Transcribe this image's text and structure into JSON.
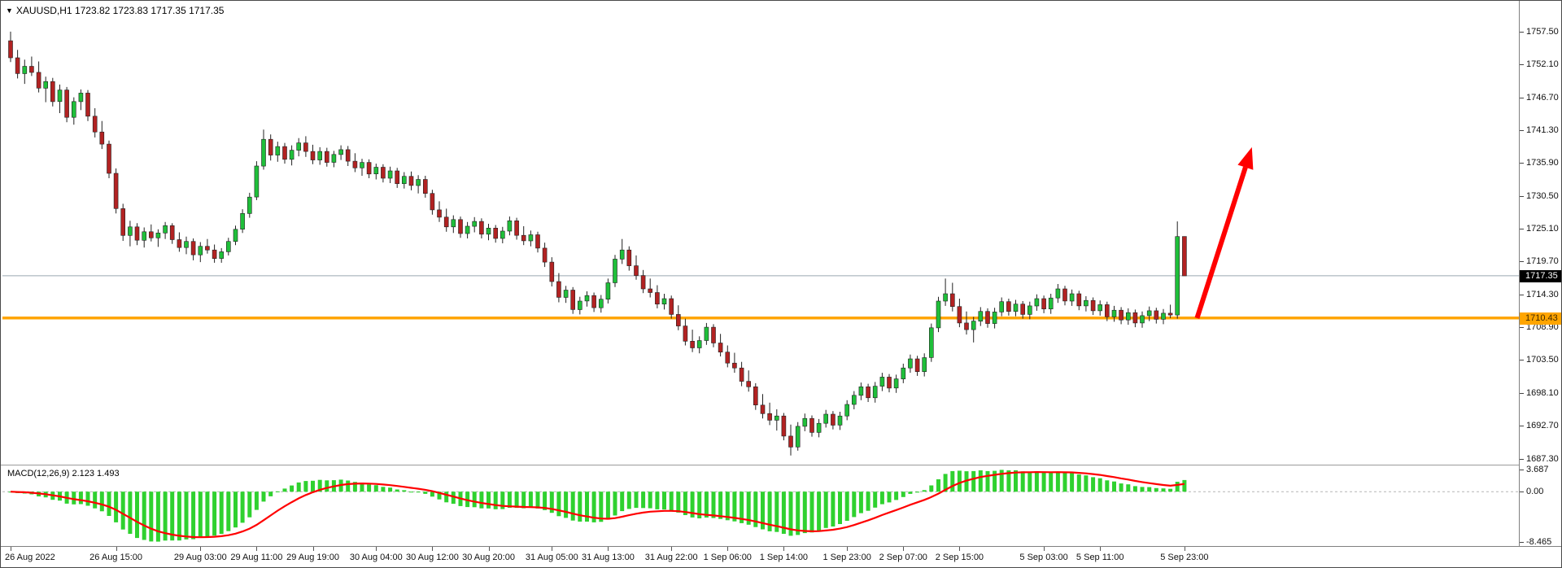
{
  "header": {
    "icon": "▼",
    "symbol_line": "XAUUSD,H1 1723.82 1723.83 1717.35 1717.35"
  },
  "colors": {
    "up": "#1fbf3a",
    "down": "#b22222",
    "wick": "#222222",
    "price_line": "#9aa7b0",
    "macd_hist": "#2fd12f",
    "macd_signal": "#ff0000",
    "zero_line": "#b5b5b5",
    "axis_text": "#111111",
    "background": "#ffffff"
  },
  "chart_data": [
    {
      "type": "candlestick",
      "title": "XAUUSD,H1",
      "timeframe": "H1",
      "ylim": [
        1686.3,
        1762.3
      ],
      "y_ticks": [
        1757.5,
        1752.1,
        1746.7,
        1741.3,
        1735.9,
        1730.5,
        1725.1,
        1719.7,
        1714.3,
        1708.9,
        1703.5,
        1698.1,
        1692.7,
        1687.3
      ],
      "last_price": 1717.35,
      "last_price_label": "1717.35",
      "hline": {
        "price": 1710.43,
        "label": "1710.43",
        "color": "#ffa500"
      },
      "arrow": {
        "from_bar": 168.8,
        "from_price": 1710.4,
        "to_bar": 176.6,
        "to_price": 1738.5,
        "color": "#ff0000"
      },
      "x_labels": [
        {
          "text": "26 Aug 2022",
          "bar": 0
        },
        {
          "text": "26 Aug 15:00",
          "bar": 15
        },
        {
          "text": "29 Aug 03:00",
          "bar": 27
        },
        {
          "text": "29 Aug 11:00",
          "bar": 35
        },
        {
          "text": "29 Aug 19:00",
          "bar": 43
        },
        {
          "text": "30 Aug 04:00",
          "bar": 52
        },
        {
          "text": "30 Aug 12:00",
          "bar": 60
        },
        {
          "text": "30 Aug 20:00",
          "bar": 68
        },
        {
          "text": "31 Aug 05:00",
          "bar": 77
        },
        {
          "text": "31 Aug 13:00",
          "bar": 85
        },
        {
          "text": "31 Aug 22:00",
          "bar": 94
        },
        {
          "text": "1 Sep 06:00",
          "bar": 102
        },
        {
          "text": "1 Sep 14:00",
          "bar": 110
        },
        {
          "text": "1 Sep 23:00",
          "bar": 119
        },
        {
          "text": "2 Sep 07:00",
          "bar": 127
        },
        {
          "text": "2 Sep 15:00",
          "bar": 135
        },
        {
          "text": "5 Sep 03:00",
          "bar": 147
        },
        {
          "text": "5 Sep 11:00",
          "bar": 155
        },
        {
          "text": "5 Sep 23:00",
          "bar": 167
        }
      ],
      "ohlc": [
        [
          1756.0,
          1757.5,
          1752.5,
          1753.2
        ],
        [
          1753.2,
          1754.5,
          1749.8,
          1750.6
        ],
        [
          1750.6,
          1752.9,
          1748.9,
          1751.8
        ],
        [
          1751.8,
          1753.4,
          1750.2,
          1750.8
        ],
        [
          1750.8,
          1752.6,
          1747.5,
          1748.2
        ],
        [
          1748.2,
          1750.1,
          1745.9,
          1749.3
        ],
        [
          1749.3,
          1749.9,
          1745.2,
          1746.0
        ],
        [
          1746.0,
          1748.8,
          1744.1,
          1747.9
        ],
        [
          1747.9,
          1748.4,
          1742.6,
          1743.4
        ],
        [
          1743.4,
          1746.7,
          1742.2,
          1746.0
        ],
        [
          1746.0,
          1748.0,
          1744.6,
          1747.4
        ],
        [
          1747.4,
          1747.9,
          1742.8,
          1743.6
        ],
        [
          1743.6,
          1744.9,
          1740.1,
          1741.0
        ],
        [
          1741.0,
          1742.8,
          1738.2,
          1739.0
        ],
        [
          1739.0,
          1739.6,
          1733.4,
          1734.2
        ],
        [
          1734.2,
          1735.0,
          1727.6,
          1728.4
        ],
        [
          1728.4,
          1729.2,
          1723.1,
          1724.0
        ],
        [
          1724.0,
          1726.4,
          1722.2,
          1725.4
        ],
        [
          1725.4,
          1726.0,
          1722.4,
          1723.2
        ],
        [
          1723.2,
          1725.3,
          1722.0,
          1724.6
        ],
        [
          1724.6,
          1725.8,
          1723.0,
          1723.6
        ],
        [
          1723.6,
          1725.0,
          1722.1,
          1724.4
        ],
        [
          1724.4,
          1726.2,
          1723.4,
          1725.6
        ],
        [
          1725.6,
          1726.0,
          1722.6,
          1723.3
        ],
        [
          1723.3,
          1724.5,
          1721.3,
          1722.0
        ],
        [
          1722.0,
          1723.8,
          1720.9,
          1723.0
        ],
        [
          1723.0,
          1723.5,
          1719.9,
          1720.8
        ],
        [
          1720.8,
          1722.9,
          1719.6,
          1722.2
        ],
        [
          1722.2,
          1723.4,
          1721.0,
          1721.6
        ],
        [
          1721.6,
          1722.5,
          1719.5,
          1720.2
        ],
        [
          1720.2,
          1721.9,
          1719.5,
          1721.3
        ],
        [
          1721.3,
          1723.6,
          1720.7,
          1723.0
        ],
        [
          1723.0,
          1725.6,
          1722.4,
          1725.0
        ],
        [
          1725.0,
          1728.3,
          1724.4,
          1727.6
        ],
        [
          1727.6,
          1731.0,
          1726.9,
          1730.3
        ],
        [
          1730.3,
          1736.2,
          1729.8,
          1735.4
        ],
        [
          1735.4,
          1741.4,
          1734.8,
          1739.8
        ],
        [
          1739.8,
          1740.6,
          1736.3,
          1737.2
        ],
        [
          1737.2,
          1739.4,
          1736.1,
          1738.6
        ],
        [
          1738.6,
          1739.2,
          1735.8,
          1736.5
        ],
        [
          1736.5,
          1738.8,
          1735.5,
          1738.0
        ],
        [
          1738.0,
          1740.0,
          1737.0,
          1739.2
        ],
        [
          1739.2,
          1740.3,
          1736.9,
          1737.8
        ],
        [
          1737.8,
          1738.9,
          1735.7,
          1736.4
        ],
        [
          1736.4,
          1738.5,
          1735.6,
          1737.8
        ],
        [
          1737.8,
          1738.4,
          1735.3,
          1736.0
        ],
        [
          1736.0,
          1737.9,
          1735.2,
          1737.3
        ],
        [
          1737.3,
          1738.8,
          1736.4,
          1738.1
        ],
        [
          1738.1,
          1738.7,
          1735.4,
          1736.2
        ],
        [
          1736.2,
          1737.5,
          1734.4,
          1735.1
        ],
        [
          1735.1,
          1736.6,
          1733.8,
          1736.0
        ],
        [
          1736.0,
          1736.5,
          1733.4,
          1734.1
        ],
        [
          1734.1,
          1735.8,
          1733.2,
          1735.2
        ],
        [
          1735.2,
          1735.7,
          1732.7,
          1733.4
        ],
        [
          1733.4,
          1735.3,
          1732.6,
          1734.6
        ],
        [
          1734.6,
          1735.1,
          1731.8,
          1732.5
        ],
        [
          1732.5,
          1734.4,
          1731.7,
          1733.7
        ],
        [
          1733.7,
          1734.5,
          1731.4,
          1732.2
        ],
        [
          1732.2,
          1733.9,
          1730.9,
          1733.2
        ],
        [
          1733.2,
          1733.8,
          1730.2,
          1730.9
        ],
        [
          1730.9,
          1731.5,
          1727.4,
          1728.2
        ],
        [
          1728.2,
          1729.6,
          1726.2,
          1727.0
        ],
        [
          1727.0,
          1728.4,
          1724.6,
          1725.4
        ],
        [
          1725.4,
          1727.3,
          1724.4,
          1726.6
        ],
        [
          1726.6,
          1727.1,
          1723.6,
          1724.3
        ],
        [
          1724.3,
          1726.2,
          1723.5,
          1725.5
        ],
        [
          1725.5,
          1727.0,
          1724.5,
          1726.3
        ],
        [
          1726.3,
          1726.8,
          1723.5,
          1724.2
        ],
        [
          1724.2,
          1725.9,
          1723.2,
          1725.2
        ],
        [
          1725.2,
          1725.7,
          1722.8,
          1723.5
        ],
        [
          1723.5,
          1725.4,
          1722.7,
          1724.7
        ],
        [
          1724.7,
          1727.1,
          1724.0,
          1726.4
        ],
        [
          1726.4,
          1726.9,
          1723.3,
          1724.0
        ],
        [
          1724.0,
          1725.5,
          1722.4,
          1723.1
        ],
        [
          1723.1,
          1724.8,
          1722.2,
          1724.1
        ],
        [
          1724.1,
          1724.6,
          1721.2,
          1721.9
        ],
        [
          1721.9,
          1722.8,
          1718.8,
          1719.6
        ],
        [
          1719.6,
          1720.4,
          1715.6,
          1716.4
        ],
        [
          1716.4,
          1717.8,
          1713.0,
          1713.8
        ],
        [
          1713.8,
          1715.7,
          1712.9,
          1715.0
        ],
        [
          1715.0,
          1715.5,
          1711.1,
          1711.8
        ],
        [
          1711.8,
          1713.9,
          1711.0,
          1713.2
        ],
        [
          1713.2,
          1714.8,
          1712.3,
          1714.1
        ],
        [
          1714.1,
          1714.6,
          1711.4,
          1712.1
        ],
        [
          1712.1,
          1714.2,
          1711.3,
          1713.5
        ],
        [
          1713.5,
          1716.9,
          1712.8,
          1716.2
        ],
        [
          1716.2,
          1720.8,
          1715.5,
          1720.1
        ],
        [
          1720.1,
          1723.4,
          1719.3,
          1721.6
        ],
        [
          1721.6,
          1722.2,
          1718.2,
          1719.0
        ],
        [
          1719.0,
          1720.7,
          1716.7,
          1717.4
        ],
        [
          1717.4,
          1718.3,
          1714.5,
          1715.2
        ],
        [
          1715.2,
          1716.9,
          1713.8,
          1714.6
        ],
        [
          1714.6,
          1715.8,
          1712.0,
          1712.7
        ],
        [
          1712.7,
          1714.4,
          1711.8,
          1713.6
        ],
        [
          1713.6,
          1714.1,
          1710.3,
          1711.0
        ],
        [
          1711.0,
          1712.5,
          1708.4,
          1709.1
        ],
        [
          1709.1,
          1710.3,
          1705.9,
          1706.6
        ],
        [
          1706.6,
          1708.5,
          1704.8,
          1705.5
        ],
        [
          1705.5,
          1707.4,
          1704.6,
          1706.7
        ],
        [
          1706.7,
          1709.6,
          1706.0,
          1708.9
        ],
        [
          1708.9,
          1709.4,
          1705.6,
          1706.3
        ],
        [
          1706.3,
          1707.8,
          1704.1,
          1704.8
        ],
        [
          1704.8,
          1705.9,
          1702.3,
          1703.0
        ],
        [
          1703.0,
          1704.7,
          1701.4,
          1702.2
        ],
        [
          1702.2,
          1703.2,
          1699.2,
          1700.0
        ],
        [
          1700.0,
          1701.8,
          1698.3,
          1699.1
        ],
        [
          1699.1,
          1699.7,
          1695.3,
          1696.1
        ],
        [
          1696.1,
          1697.9,
          1693.9,
          1694.7
        ],
        [
          1694.7,
          1696.5,
          1692.8,
          1693.6
        ],
        [
          1693.6,
          1695.4,
          1691.9,
          1694.3
        ],
        [
          1694.3,
          1694.8,
          1690.3,
          1691.0
        ],
        [
          1691.0,
          1692.9,
          1687.8,
          1689.2
        ],
        [
          1689.2,
          1693.3,
          1688.6,
          1692.6
        ],
        [
          1692.6,
          1694.7,
          1691.8,
          1693.9
        ],
        [
          1693.9,
          1694.4,
          1690.9,
          1691.6
        ],
        [
          1691.6,
          1693.8,
          1690.8,
          1693.1
        ],
        [
          1693.1,
          1695.3,
          1692.4,
          1694.6
        ],
        [
          1694.6,
          1695.1,
          1692.1,
          1692.8
        ],
        [
          1692.8,
          1695.0,
          1692.0,
          1694.3
        ],
        [
          1694.3,
          1696.9,
          1693.6,
          1696.2
        ],
        [
          1696.2,
          1698.4,
          1695.4,
          1697.7
        ],
        [
          1697.7,
          1699.8,
          1696.9,
          1699.1
        ],
        [
          1699.1,
          1699.6,
          1696.6,
          1697.3
        ],
        [
          1697.3,
          1699.9,
          1696.5,
          1699.2
        ],
        [
          1699.2,
          1701.4,
          1698.4,
          1700.7
        ],
        [
          1700.7,
          1701.2,
          1698.2,
          1698.9
        ],
        [
          1698.9,
          1701.1,
          1698.1,
          1700.4
        ],
        [
          1700.4,
          1702.9,
          1699.7,
          1702.2
        ],
        [
          1702.2,
          1704.4,
          1701.4,
          1703.7
        ],
        [
          1703.7,
          1704.2,
          1700.9,
          1701.6
        ],
        [
          1701.6,
          1704.6,
          1700.8,
          1703.9
        ],
        [
          1703.9,
          1709.5,
          1703.2,
          1708.8
        ],
        [
          1708.8,
          1713.9,
          1708.1,
          1713.2
        ],
        [
          1713.2,
          1716.9,
          1712.4,
          1714.4
        ],
        [
          1714.4,
          1716.2,
          1711.5,
          1712.3
        ],
        [
          1712.3,
          1713.6,
          1708.9,
          1709.6
        ],
        [
          1709.6,
          1711.5,
          1707.7,
          1708.5
        ],
        [
          1708.5,
          1710.6,
          1706.4,
          1709.9
        ],
        [
          1709.9,
          1712.2,
          1709.1,
          1711.5
        ],
        [
          1711.5,
          1712.0,
          1708.8,
          1709.5
        ],
        [
          1709.5,
          1712.1,
          1708.7,
          1711.4
        ],
        [
          1711.4,
          1713.8,
          1710.7,
          1713.1
        ],
        [
          1713.1,
          1713.6,
          1710.8,
          1711.5
        ],
        [
          1711.5,
          1713.4,
          1710.7,
          1712.7
        ],
        [
          1712.7,
          1713.2,
          1710.3,
          1711.0
        ],
        [
          1711.0,
          1713.1,
          1710.2,
          1712.4
        ],
        [
          1712.4,
          1714.3,
          1711.6,
          1713.6
        ],
        [
          1713.6,
          1714.1,
          1711.2,
          1711.9
        ],
        [
          1711.9,
          1714.4,
          1711.1,
          1713.7
        ],
        [
          1713.7,
          1716.0,
          1712.9,
          1715.2
        ],
        [
          1715.2,
          1715.7,
          1712.5,
          1713.2
        ],
        [
          1713.2,
          1715.1,
          1712.4,
          1714.4
        ],
        [
          1714.4,
          1714.9,
          1711.7,
          1712.4
        ],
        [
          1712.4,
          1714.0,
          1711.5,
          1713.3
        ],
        [
          1713.3,
          1713.8,
          1710.9,
          1711.6
        ],
        [
          1711.6,
          1713.3,
          1710.8,
          1712.6
        ],
        [
          1712.6,
          1713.1,
          1709.9,
          1710.6
        ],
        [
          1710.6,
          1712.4,
          1709.8,
          1711.7
        ],
        [
          1711.7,
          1712.2,
          1709.4,
          1710.1
        ],
        [
          1710.1,
          1712.0,
          1709.3,
          1711.3
        ],
        [
          1711.3,
          1711.8,
          1708.9,
          1709.6
        ],
        [
          1709.6,
          1711.5,
          1708.8,
          1710.8
        ],
        [
          1710.8,
          1712.3,
          1709.9,
          1711.6
        ],
        [
          1711.6,
          1712.1,
          1709.5,
          1710.2
        ],
        [
          1710.2,
          1711.9,
          1709.4,
          1711.2
        ],
        [
          1711.2,
          1712.6,
          1710.4,
          1710.9
        ],
        [
          1710.9,
          1726.3,
          1710.3,
          1723.8
        ],
        [
          1723.82,
          1723.83,
          1717.35,
          1717.35
        ]
      ]
    },
    {
      "type": "macd",
      "label": "MACD(12,26,9) 2.123 1.493",
      "params": [
        12,
        26,
        9
      ],
      "main_last": 2.123,
      "signal_last": 1.493,
      "ylim": [
        -9.2,
        4.3
      ],
      "y_ticks": [
        {
          "label": "3.687",
          "value": 3.687
        },
        {
          "label": "0.00",
          "value": 0.0
        },
        {
          "label": "-8.465",
          "value": -8.465
        }
      ]
    }
  ]
}
